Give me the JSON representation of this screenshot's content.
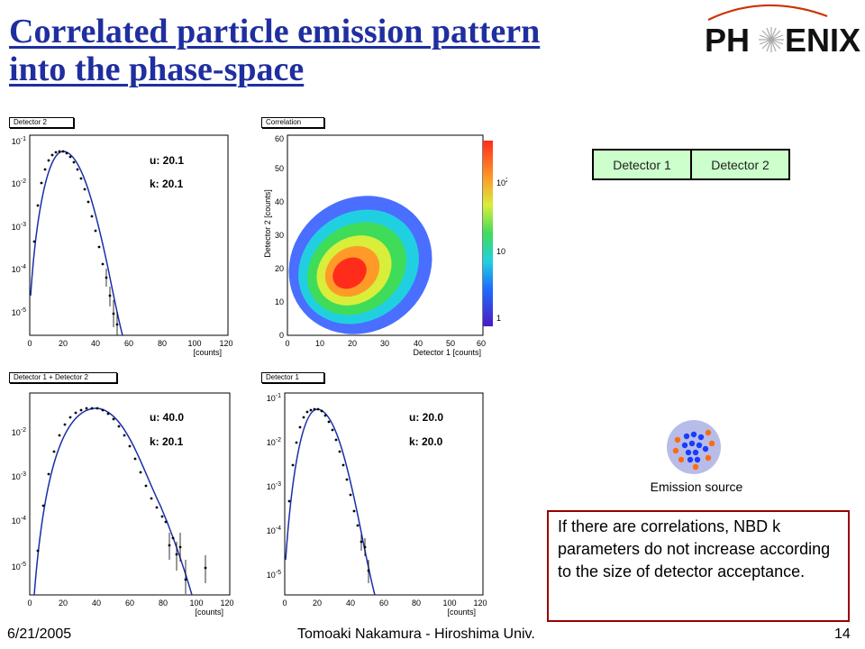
{
  "slide": {
    "title_line1": "Correlated particle emission pattern",
    "title_line2": "into the phase-space",
    "logo_left": "PH",
    "logo_right": "ENIX"
  },
  "panels": [
    {
      "label": "Detector 2",
      "x_ticks": [
        "0",
        "20",
        "40",
        "60",
        "80",
        "100",
        "120"
      ],
      "y_ticks": [
        "10^-1",
        "10^-2",
        "10^-3",
        "10^-4",
        "10^-5"
      ],
      "x_unit": "[counts]",
      "u_text": "u:  20.1",
      "k_text": "k:  20.1"
    },
    {
      "label": "Correlation",
      "x_ticks": [
        "0",
        "10",
        "20",
        "30",
        "40",
        "50",
        "60"
      ],
      "y_ticks": [
        "0",
        "10",
        "20",
        "30",
        "40",
        "50",
        "60"
      ],
      "x_unit": "Detector 1 [counts]",
      "y_unit": "Detector 2 [counts]",
      "z_ticks": [
        "10^2",
        "10",
        "1"
      ]
    },
    {
      "label": "Detector 1 + Detector 2",
      "x_ticks": [
        "0",
        "20",
        "40",
        "60",
        "80",
        "100",
        "120"
      ],
      "y_ticks": [
        "10^-2",
        "10^-3",
        "10^-4",
        "10^-5"
      ],
      "x_unit": "[counts]",
      "u_text": "u:  40.0",
      "k_text": "k:  20.1"
    },
    {
      "label": "Detector 1",
      "x_ticks": [
        "0",
        "20",
        "40",
        "60",
        "80",
        "100",
        "120"
      ],
      "y_ticks": [
        "10^-1",
        "10^-2",
        "10^-3",
        "10^-4",
        "10^-5"
      ],
      "x_unit": "[counts]",
      "u_text": "u:  20.0",
      "k_text": "k:  20.0"
    }
  ],
  "detectors": {
    "cell1": "Detector 1",
    "cell2": "Detector 2",
    "fill_color": "#ccffcc"
  },
  "emission_source": {
    "label": "Emission source"
  },
  "note": {
    "text": "If there are correlations, NBD k parameters do not increase according to the size of detector acceptance."
  },
  "footer": {
    "date": "6/21/2005",
    "author": "Tomoaki Nakamura - Hiroshima Univ.",
    "page": "14"
  },
  "colors": {
    "title": "#1f2f9f",
    "curve": "#1a2ea8",
    "note_border": "#990000"
  }
}
